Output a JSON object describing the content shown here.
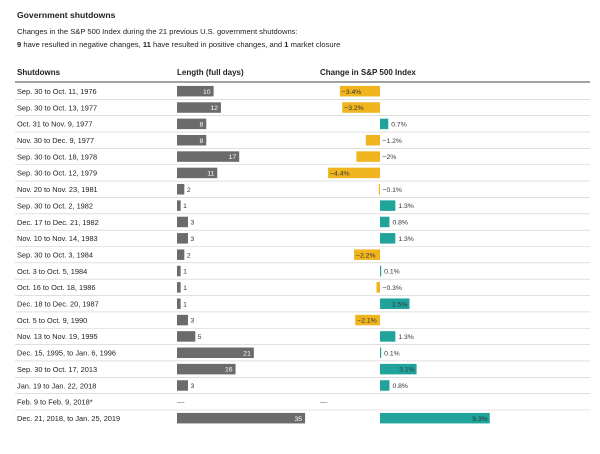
{
  "title": "Government shutdowns",
  "subtitle_line1": "Changes in the S&P 500 Index during the 21 previous U.S. government shutdowns:",
  "subtitle_line2": {
    "negative_count": "9",
    "negative_text": " have resulted in negative changes, ",
    "positive_count": "11",
    "positive_text": " have resulted in positive changes, and ",
    "closure_count": "1",
    "closure_text": " market closure"
  },
  "colors": {
    "length_bar": "#6b6b6b",
    "negative": "#f0b41e",
    "positive": "#1fa39a",
    "divider": "#cccccc",
    "header_rule": "#444444"
  },
  "chart_data": {
    "type": "bar",
    "columns": [
      "Shutdowns",
      "Length (full days)",
      "Change in S&P 500 Index"
    ],
    "categories": [
      "Sep. 30 to Oct. 11, 1976",
      "Sep. 30 to Oct. 13, 1977",
      "Oct. 31 to Nov. 9, 1977",
      "Nov. 30 to Dec. 9, 1977",
      "Sep. 30 to Oct. 18, 1978",
      "Sep. 30 to Oct. 12, 1979",
      "Nov. 20 to Nov. 23, 1981",
      "Sep. 30 to Oct. 2, 1982",
      "Dec. 17 to Dec. 21, 1982",
      "Nov. 10 to Nov. 14, 1983",
      "Sep. 30 to Oct. 3, 1984",
      "Oct. 3 to Oct. 5, 1984",
      "Oct. 16 to Oct. 18, 1986",
      "Dec. 18 to Dec. 20, 1987",
      "Oct. 5 to Oct. 9, 1990",
      "Nov. 13 to Nov. 19, 1995",
      "Dec. 15, 1995, to Jan. 6, 1996",
      "Sep. 30 to Oct. 17, 2013",
      "Jan. 19 to Jan. 22, 2018",
      "Feb. 9 to Feb. 9, 2018*",
      "Dec. 21, 2018, to Jan. 25, 2019"
    ],
    "series": [
      {
        "name": "Length (full days)",
        "values": [
          10,
          12,
          8,
          8,
          17,
          11,
          2,
          1,
          3,
          3,
          2,
          1,
          1,
          1,
          3,
          5,
          21,
          16,
          3,
          null,
          35
        ],
        "labels": [
          "10",
          "12",
          "8",
          "8",
          "17",
          "11",
          "2",
          "1",
          "3",
          "3",
          "2",
          "1",
          "1",
          "1",
          "3",
          "5",
          "21",
          "16",
          "3",
          "—",
          "35"
        ],
        "xlim": [
          0,
          35
        ]
      },
      {
        "name": "Change in S&P 500 Index",
        "values": [
          -3.4,
          -3.2,
          0.7,
          -1.2,
          -2,
          -4.4,
          -0.1,
          1.3,
          0.8,
          1.3,
          -2.2,
          0.1,
          -0.3,
          2.5,
          -2.1,
          1.3,
          0.1,
          3.1,
          0.8,
          null,
          9.3
        ],
        "labels": [
          "−3.4%",
          "−3.2%",
          "0.7%",
          "−1.2%",
          "−2%",
          "−4.4%",
          "−0.1%",
          "1.3%",
          "0.8%",
          "1.3%",
          "−2.2%",
          "0.1%",
          "−0.3%",
          "2.5%",
          "−2.1%",
          "1.3%",
          "0.1%",
          "3.1%",
          "0.8%",
          "—",
          "9.3%"
        ],
        "xlim": [
          -5,
          9.3
        ]
      }
    ]
  }
}
